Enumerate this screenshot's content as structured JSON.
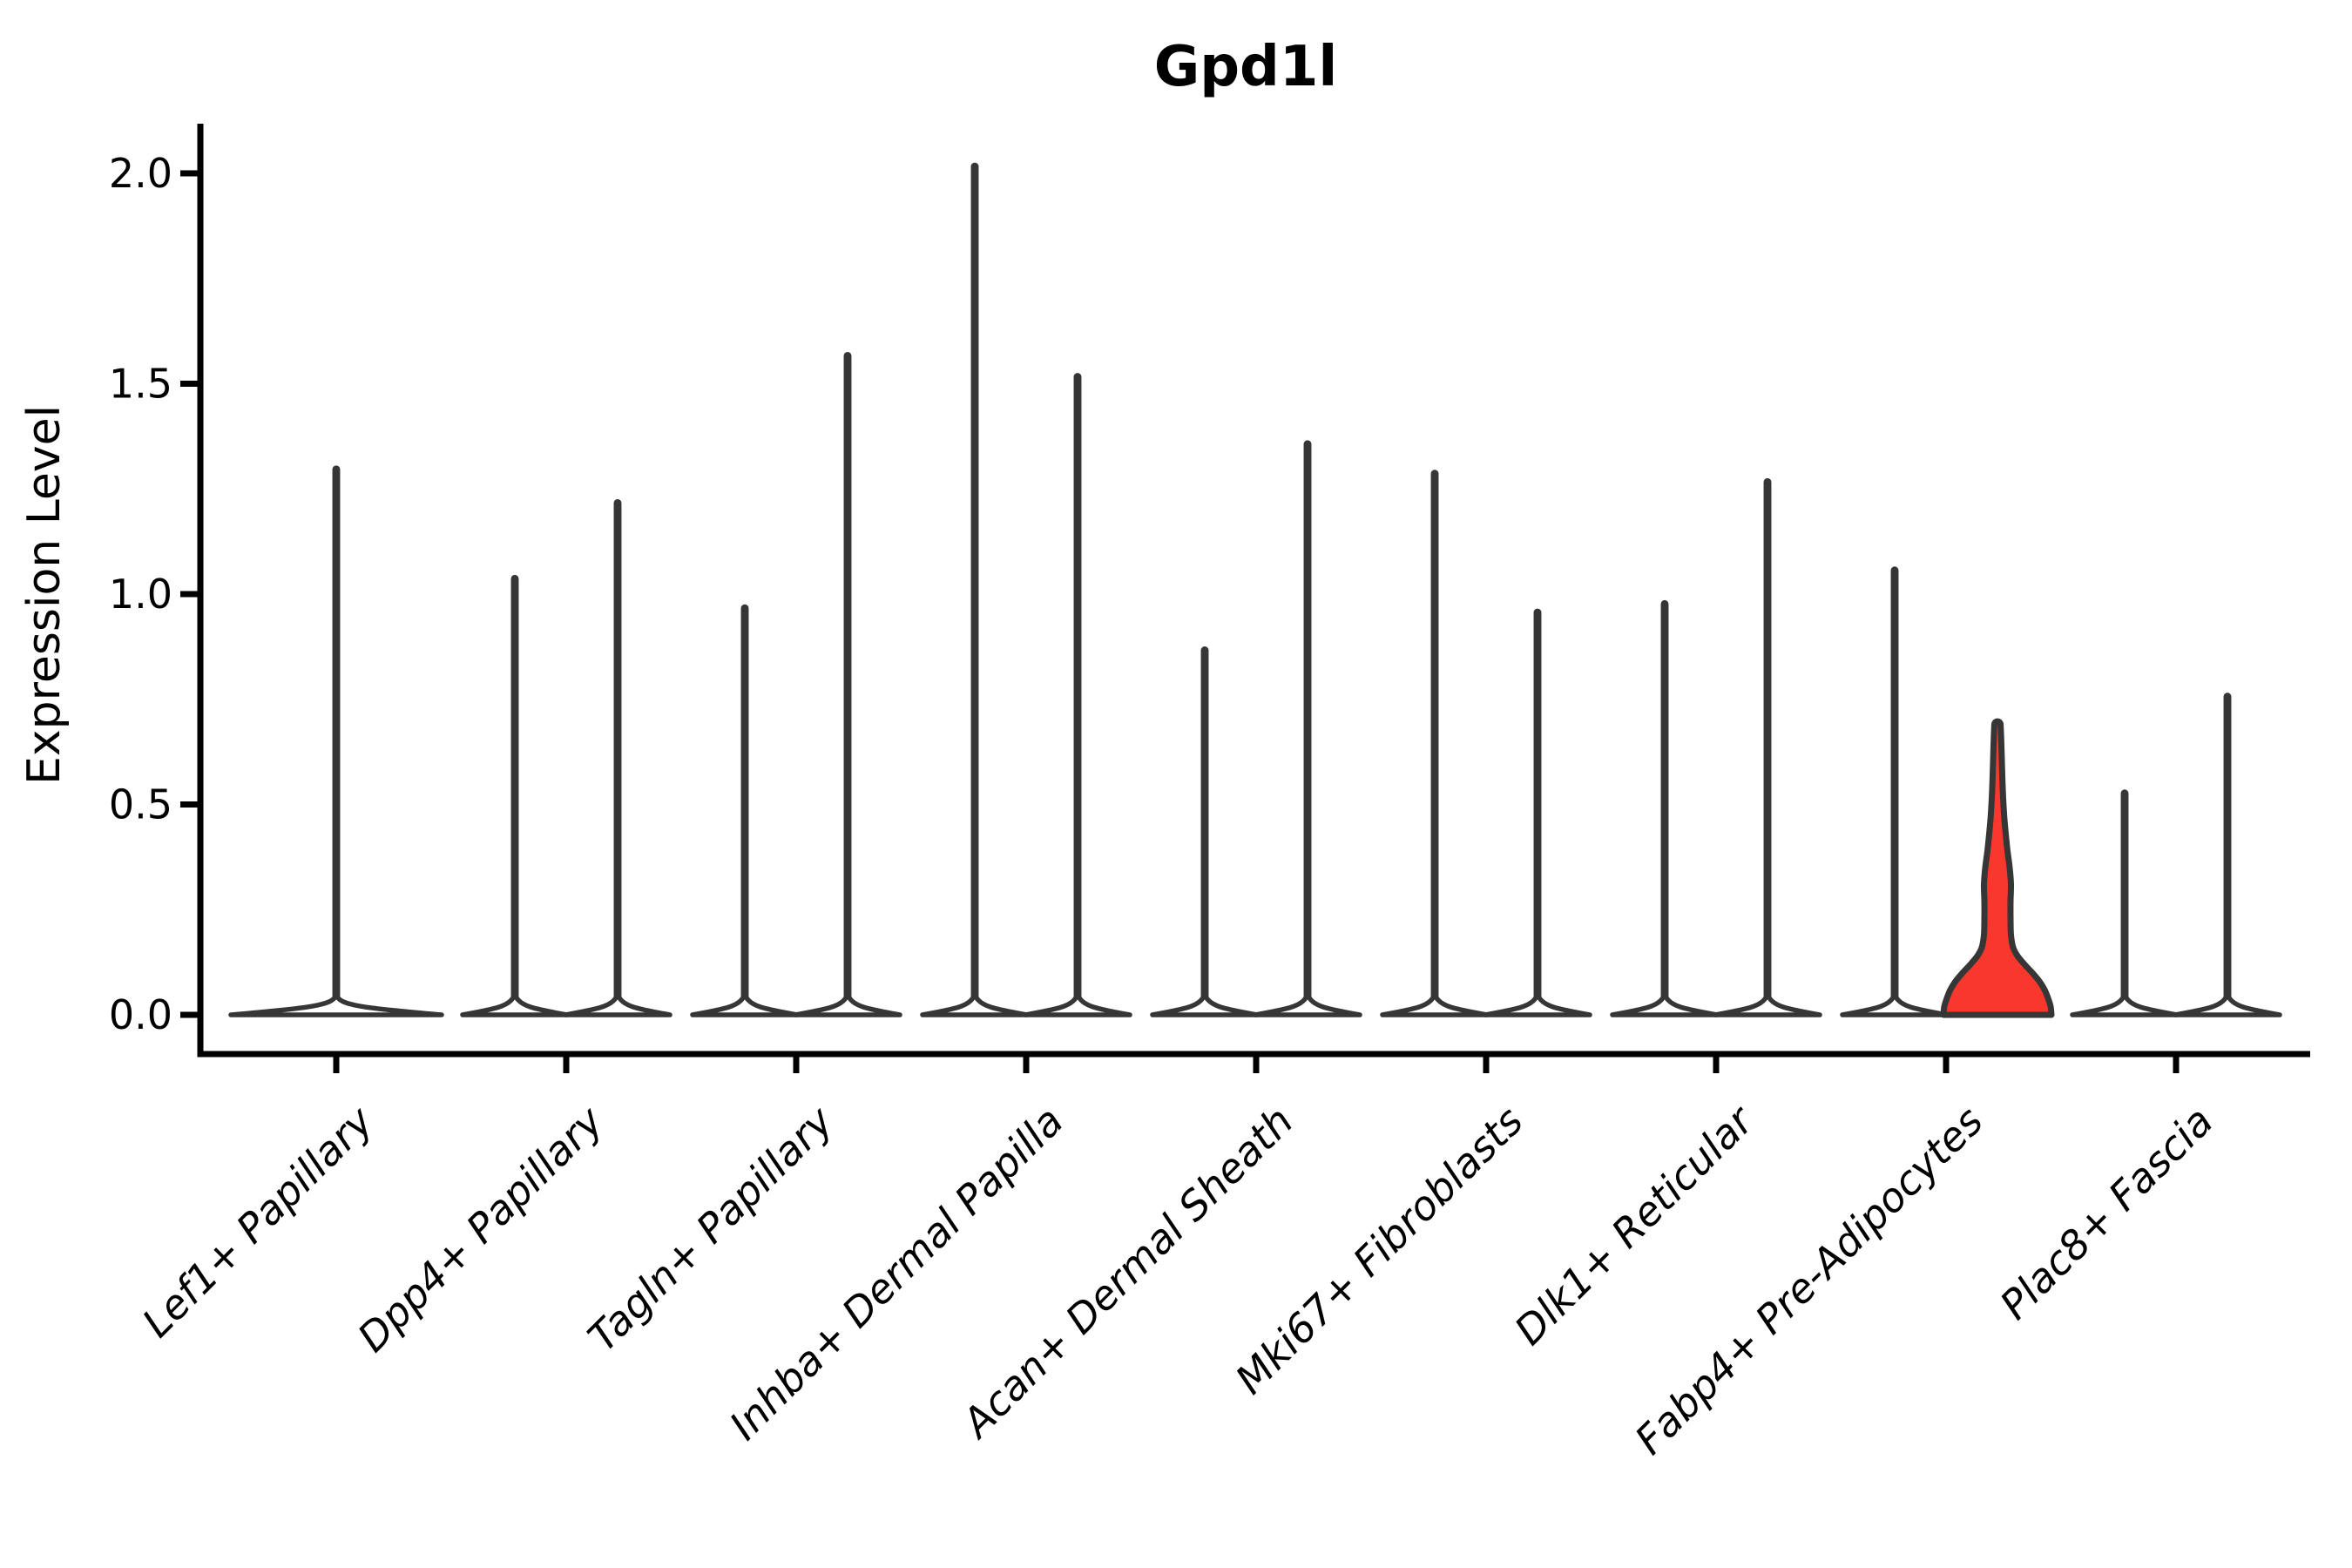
{
  "chart_data": {
    "type": "violin",
    "title": "Gpd1l",
    "ylabel": "Expression Level",
    "xlabel": "",
    "grid": false,
    "legend": "none",
    "background": "#ffffff",
    "ylim": [
      -0.09,
      2.12
    ],
    "ytick_labels": [
      "0.0",
      "0.5",
      "1.0",
      "1.5",
      "2.0"
    ],
    "ytick_values": [
      0.0,
      0.5,
      1.0,
      1.5,
      2.0
    ],
    "categories": [
      "Lef1+ Papillary",
      "Dpp4+ Papillary",
      "Tagln+ Papillary",
      "Inhba+ Dermal Papilla",
      "Acan+ Dermal Sheath",
      "Mki67+ Fibroblasts",
      "Dlk1+ Reticular",
      "Fabp4+ Pre-Adipocytes",
      "Plac8+ Fascia"
    ],
    "series": [
      {
        "category": "Lef1+ Papillary",
        "violins": [
          {
            "max": 1.3,
            "fill": "#ffffff",
            "wide": true
          }
        ]
      },
      {
        "category": "Dpp4+ Papillary",
        "violins": [
          {
            "max": 1.04,
            "fill": "#ffffff"
          },
          {
            "max": 1.22,
            "fill": "#ffffff"
          }
        ]
      },
      {
        "category": "Tagln+ Papillary",
        "violins": [
          {
            "max": 0.97,
            "fill": "#ffffff"
          },
          {
            "max": 1.57,
            "fill": "#ffffff"
          }
        ]
      },
      {
        "category": "Inhba+ Dermal Papilla",
        "violins": [
          {
            "max": 2.02,
            "fill": "#ffffff"
          },
          {
            "max": 1.52,
            "fill": "#ffffff"
          }
        ]
      },
      {
        "category": "Acan+ Dermal Sheath",
        "violins": [
          {
            "max": 0.87,
            "fill": "#ffffff"
          },
          {
            "max": 1.36,
            "fill": "#ffffff"
          }
        ]
      },
      {
        "category": "Mki67+ Fibroblasts",
        "violins": [
          {
            "max": 1.29,
            "fill": "#ffffff"
          },
          {
            "max": 0.96,
            "fill": "#ffffff"
          }
        ]
      },
      {
        "category": "Dlk1+ Reticular",
        "violins": [
          {
            "max": 0.98,
            "fill": "#ffffff"
          },
          {
            "max": 1.27,
            "fill": "#ffffff"
          }
        ]
      },
      {
        "category": "Fabp4+ Pre-Adipocytes",
        "violins": [
          {
            "max": 1.06,
            "fill": "#ffffff"
          },
          {
            "max": 0.69,
            "fill": "#f8382d",
            "highlighted": true,
            "profile": [
              [
                0.0,
                62
              ],
              [
                0.02,
                61
              ],
              [
                0.04,
                58
              ],
              [
                0.06,
                54
              ],
              [
                0.08,
                48
              ],
              [
                0.1,
                40
              ],
              [
                0.12,
                31
              ],
              [
                0.14,
                23
              ],
              [
                0.16,
                18
              ],
              [
                0.19,
                15.5
              ],
              [
                0.23,
                15
              ],
              [
                0.27,
                15
              ],
              [
                0.31,
                15.5
              ],
              [
                0.35,
                14
              ],
              [
                0.39,
                11.5
              ],
              [
                0.43,
                9.5
              ],
              [
                0.47,
                7.8
              ],
              [
                0.52,
                6.4
              ],
              [
                0.57,
                5.5
              ],
              [
                0.62,
                4.8
              ],
              [
                0.66,
                4.2
              ],
              [
                0.69,
                3.6
              ]
            ]
          }
        ]
      },
      {
        "category": "Plac8+ Fascia",
        "violins": [
          {
            "max": 0.53,
            "fill": "#ffffff"
          },
          {
            "max": 0.76,
            "fill": "#ffffff"
          }
        ]
      }
    ],
    "colors": {
      "violin_outline": "#363636",
      "highlight_fill": "#f8382d",
      "axis": "#000000",
      "text": "#000000"
    }
  }
}
